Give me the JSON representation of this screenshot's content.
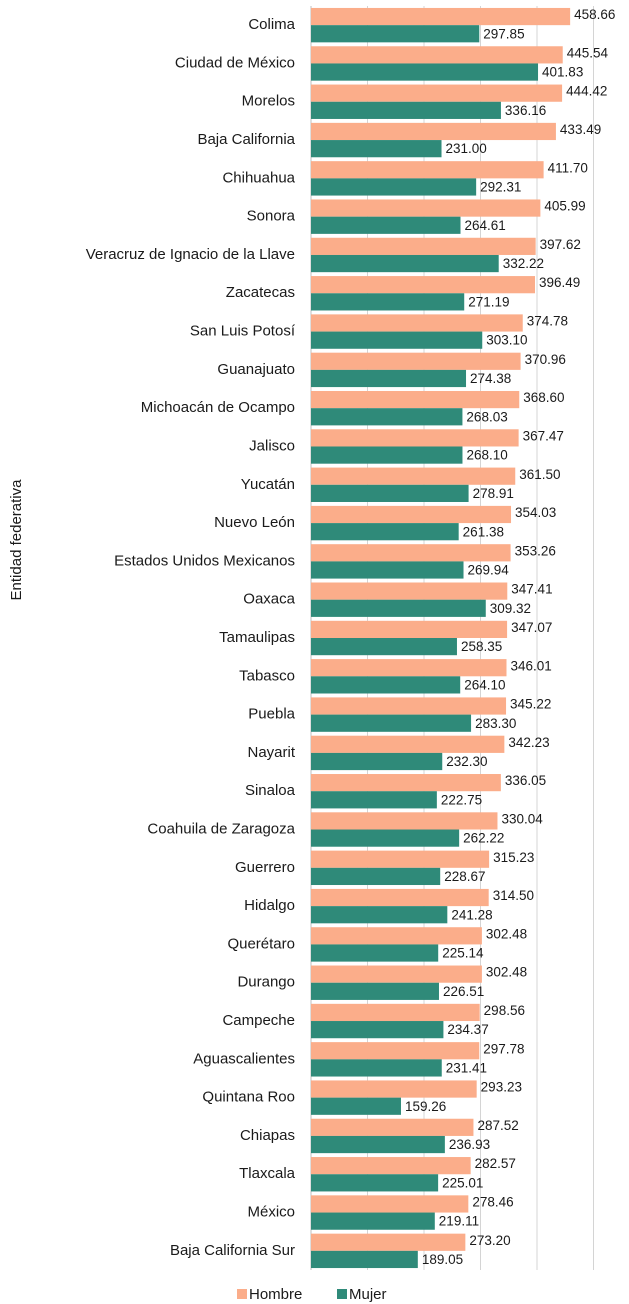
{
  "chart_data": {
    "type": "bar",
    "orientation": "horizontal",
    "ylabel": "Entidad federativa",
    "categories": [
      "Colima",
      "Ciudad de México",
      "Morelos",
      "Baja California",
      "Chihuahua",
      "Sonora",
      "Veracruz de Ignacio de la Llave",
      "Zacatecas",
      "San Luis Potosí",
      "Guanajuato",
      "Michoacán de Ocampo",
      "Jalisco",
      "Yucatán",
      "Nuevo León",
      "Estados Unidos Mexicanos",
      "Oaxaca",
      "Tamaulipas",
      "Tabasco",
      "Puebla",
      "Nayarit",
      "Sinaloa",
      "Coahuila de Zaragoza",
      "Guerrero",
      "Hidalgo",
      "Querétaro",
      "Durango",
      "Campeche",
      "Aguascalientes",
      "Quintana Roo",
      "Chiapas",
      "Tlaxcala",
      "México",
      "Baja California Sur"
    ],
    "series": [
      {
        "name": "Hombre",
        "color": "#fbad8a",
        "values": [
          458.66,
          445.54,
          444.42,
          433.49,
          411.7,
          405.99,
          397.62,
          396.49,
          374.78,
          370.96,
          368.6,
          367.47,
          361.5,
          354.03,
          353.26,
          347.41,
          347.07,
          346.01,
          345.22,
          342.23,
          336.05,
          330.04,
          315.23,
          314.5,
          302.48,
          302.48,
          298.56,
          297.78,
          293.23,
          287.52,
          282.57,
          278.46,
          273.2
        ],
        "value_labels": [
          "458.66",
          "445.54",
          "444.42",
          "433.49",
          "411.70",
          "405.99",
          "397.62",
          "396.49",
          "374.78",
          "370.96",
          "368.60",
          "367.47",
          "361.50",
          "354.03",
          "353.26",
          "347.41",
          "347.07",
          "346.01",
          "345.22",
          "342.23",
          "336.05",
          "330.04",
          "315.23",
          "314.50",
          "302.48",
          "302.48",
          "298.56",
          "297.78",
          "293.23",
          "287.52",
          "282.57",
          "278.46",
          "273.20"
        ]
      },
      {
        "name": "Mujer",
        "color": "#2f8a79",
        "values": [
          297.85,
          401.83,
          336.16,
          231.0,
          292.31,
          264.61,
          332.22,
          271.19,
          303.1,
          274.38,
          268.03,
          268.1,
          278.91,
          261.38,
          269.94,
          309.32,
          258.35,
          264.1,
          283.3,
          232.3,
          222.75,
          262.22,
          228.67,
          241.28,
          225.14,
          226.51,
          234.37,
          231.41,
          159.26,
          236.93,
          225.01,
          219.11,
          189.05
        ],
        "value_labels": [
          "297.85",
          "401.83",
          "336.16",
          "231.00",
          "292.31",
          "264.61",
          "332.22",
          "271.19",
          "303.10",
          "274.38",
          "268.03",
          "268.10",
          "278.91",
          "261.38",
          "269.94",
          "309.32",
          "258.35",
          "264.10",
          "283.30",
          "232.30",
          "222.75",
          "262.22",
          "228.67",
          "241.28",
          "225.14",
          "226.51",
          "234.37",
          "231.41",
          "159.26",
          "236.93",
          "225.01",
          "219.11",
          "189.05"
        ]
      }
    ],
    "xlim": [
      0,
      500
    ],
    "xticks": [
      0,
      100,
      200,
      300,
      400,
      500
    ],
    "grid": true,
    "legend": "bottom"
  }
}
